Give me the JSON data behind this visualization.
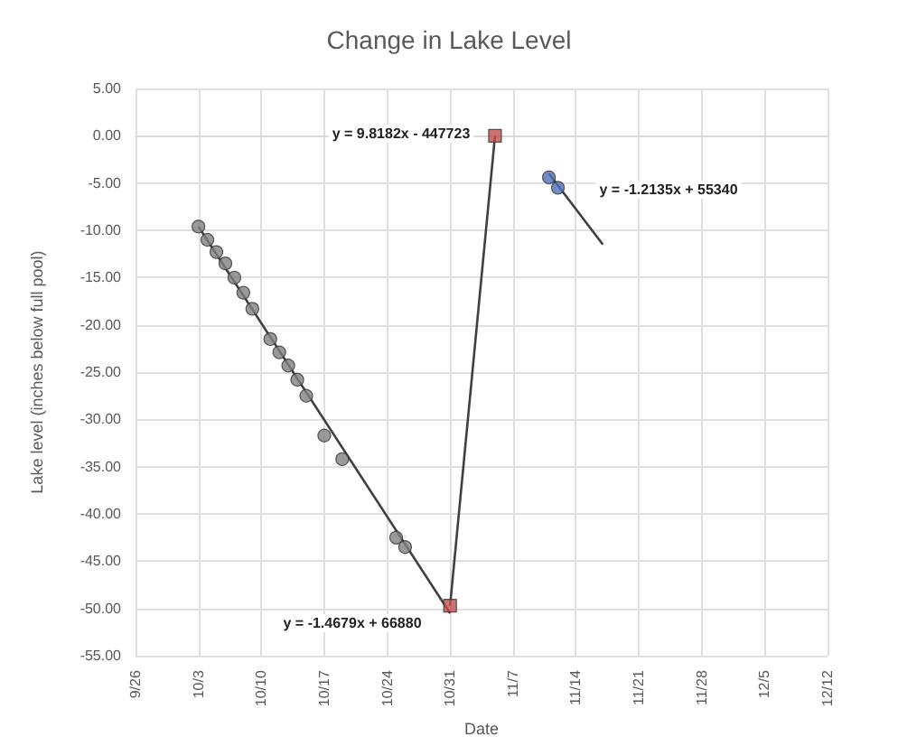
{
  "chart_data": {
    "type": "scatter",
    "title": "Change in Lake Level",
    "xlabel": "Date",
    "ylabel": "Lake level (inches below full pool)",
    "x": [
      "--10-03",
      "--10-04",
      "--10-05",
      "--10-06",
      "--10-07",
      "--10-08",
      "--10-09",
      "--10-11",
      "--10-12",
      "--10-13",
      "--10-14",
      "--10-15",
      "--10-17",
      "--10-19",
      "--10-25",
      "--10-26"
    ],
    "series": [
      {
        "color": "#7f7f7f",
        "values": [
          -9.6,
          -11.0,
          -12.3,
          -13.5,
          -15.0,
          -16.6,
          -18.3,
          -21.5,
          -22.9,
          -24.3,
          -25.8,
          -27.5,
          -31.7,
          -34.2,
          -42.5,
          -43.5
        ]
      },
      {
        "type": "scatter",
        "color": "#c0504d",
        "x": [
          "--10-31",
          "--11-05"
        ],
        "values": [
          -49.7,
          0.0
        ],
        "marker": "square"
      },
      {
        "color": "#4f6fb8",
        "x": [
          "--11-11",
          "--11-12"
        ],
        "values": [
          -4.4,
          -5.5
        ]
      },
      {
        "type": "line",
        "color": "#404040",
        "x": [
          "--10-03",
          "--10-31"
        ],
        "values": [
          -9.6,
          -50.5
        ],
        "marker": "none"
      },
      {
        "type": "line",
        "color": "#404040",
        "x": [
          "--10-31",
          "--11-05"
        ],
        "values": [
          -49.7,
          0.0
        ],
        "marker": "none"
      },
      {
        "type": "line",
        "color": "#404040",
        "x": [
          "--11-11",
          "--11-17"
        ],
        "values": [
          -4.0,
          -11.5
        ],
        "marker": "none"
      }
    ],
    "annotations": [
      "y = 9.8182x - 447723",
      "y = -1.2135x + 55340",
      "y = -1.4679x + 66880"
    ],
    "xlim": [
      "--09-26",
      "--12-12"
    ],
    "xticks": [
      {
        "value": "--09-26",
        "label": "9/26"
      },
      {
        "value": "--10-03",
        "label": "10/3"
      },
      {
        "value": "--10-10",
        "label": "10/10"
      },
      {
        "value": "--10-17",
        "label": "10/17"
      },
      {
        "value": "--10-24",
        "label": "10/24"
      },
      {
        "value": "--10-31",
        "label": "10/31"
      },
      {
        "value": "--11-07",
        "label": "11/7"
      },
      {
        "value": "--11-14",
        "label": "11/14"
      },
      {
        "value": "--11-21",
        "label": "11/21"
      },
      {
        "value": "--11-28",
        "label": "11/28"
      },
      {
        "value": "--12-05",
        "label": "12/5"
      },
      {
        "value": "--12-12",
        "label": "12/12"
      }
    ],
    "ylim": [
      -55,
      5
    ],
    "yticks": [
      {
        "value": 5,
        "label": "5.00"
      },
      {
        "value": 0,
        "label": "0.00"
      },
      {
        "value": -5,
        "label": "-5.00"
      },
      {
        "value": -10,
        "label": "-10.00"
      },
      {
        "value": -15,
        "label": "-15.00"
      },
      {
        "value": -20,
        "label": "-20.00"
      },
      {
        "value": -25,
        "label": "-25.00"
      },
      {
        "value": -30,
        "label": "-30.00"
      },
      {
        "value": -35,
        "label": "-35.00"
      },
      {
        "value": -40,
        "label": "-40.00"
      },
      {
        "value": -45,
        "label": "-45.00"
      },
      {
        "value": -50,
        "label": "-50.00"
      },
      {
        "value": -55,
        "label": "-55.00"
      }
    ],
    "grid": true,
    "marker": "circle"
  }
}
